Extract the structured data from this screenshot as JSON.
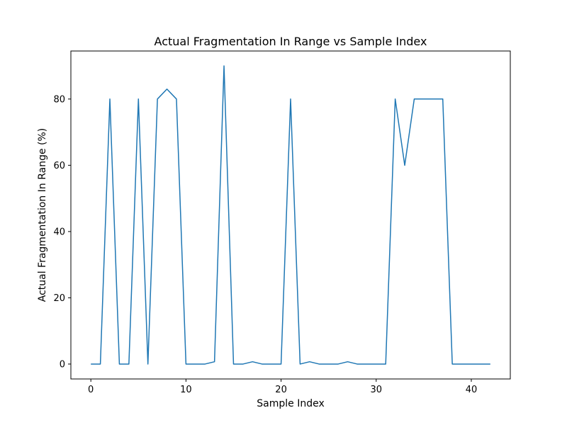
{
  "chart_data": {
    "type": "line",
    "title": "Actual Fragmentation In Range vs Sample Index",
    "xlabel": "Sample Index",
    "ylabel": "Actual Fragmentation In Range (%)",
    "xlim": [
      -2.1,
      44.1
    ],
    "ylim": [
      -4.5,
      94.5
    ],
    "xticks": [
      0,
      10,
      20,
      30,
      40
    ],
    "yticks": [
      0,
      20,
      40,
      60,
      80
    ],
    "grid": false,
    "legend": "none",
    "line_color": "#1f77b4",
    "series": [
      {
        "x": [
          0,
          1,
          2,
          3,
          4,
          5,
          6,
          7,
          8,
          9,
          10,
          11,
          12,
          13,
          14,
          15,
          16,
          17,
          18,
          19,
          20,
          21,
          22,
          23,
          24,
          25,
          26,
          27,
          28,
          29,
          30,
          31,
          32,
          33,
          34,
          35,
          36,
          37,
          38,
          39,
          40,
          41,
          42
        ],
        "values": [
          0,
          0,
          80,
          0,
          0,
          80,
          0,
          80,
          83,
          80,
          0,
          0,
          0,
          0.7,
          90,
          0,
          0,
          0.7,
          0,
          0,
          0,
          80,
          0,
          0.7,
          0,
          0,
          0,
          0.7,
          0,
          0,
          0,
          0,
          80,
          60,
          80,
          80,
          80,
          80,
          0,
          0,
          0,
          0,
          0
        ]
      }
    ]
  }
}
